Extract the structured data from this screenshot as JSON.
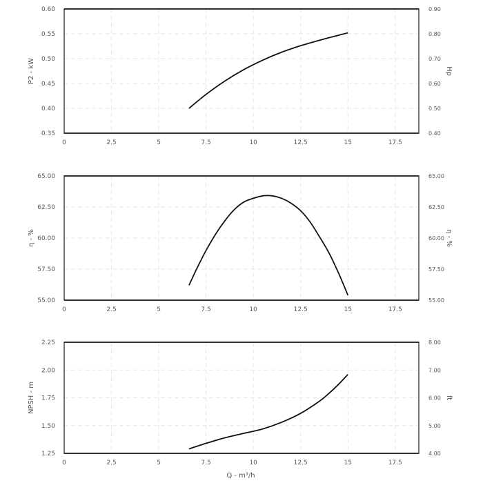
{
  "chart_data": [
    {
      "type": "line",
      "id": "power",
      "ylabel_left": "P2 - kW",
      "ylabel_right": "Hp",
      "xlim": [
        0,
        18.75
      ],
      "xticks": [
        0,
        2.5,
        5,
        7.5,
        10,
        12.5,
        15,
        17.5
      ],
      "xtick_labels": [
        "0",
        "2.5",
        "5",
        "7.5",
        "10",
        "12.5",
        "15",
        "17.5"
      ],
      "ylim": [
        0.35,
        0.6
      ],
      "yticks": [
        0.35,
        0.4,
        0.45,
        0.5,
        0.55,
        0.6
      ],
      "ytick_labels": [
        "0.35",
        "0.40",
        "0.45",
        "0.50",
        "0.55",
        "0.60"
      ],
      "right_tick_labels": [
        "0.40",
        "0.50",
        "0.60",
        "0.70",
        "0.80",
        "0.90"
      ],
      "grid": true,
      "series": [
        {
          "x": [
            6.6,
            7.5,
            8.5,
            9.5,
            10.5,
            11.5,
            12.5,
            13.5,
            14.5,
            15.0
          ],
          "y": [
            0.4,
            0.428,
            0.455,
            0.478,
            0.497,
            0.513,
            0.526,
            0.537,
            0.547,
            0.552
          ]
        }
      ]
    },
    {
      "type": "line",
      "id": "efficiency",
      "ylabel_left": "η - %",
      "ylabel_right": "η - %",
      "xlim": [
        0,
        18.75
      ],
      "xticks": [
        0,
        2.5,
        5,
        7.5,
        10,
        12.5,
        15,
        17.5
      ],
      "xtick_labels": [
        "0",
        "2.5",
        "5",
        "7.5",
        "10",
        "12.5",
        "15",
        "17.5"
      ],
      "ylim": [
        55.0,
        65.0
      ],
      "yticks": [
        55.0,
        57.5,
        60.0,
        62.5,
        65.0
      ],
      "ytick_labels": [
        "55.00",
        "57.50",
        "60.00",
        "62.50",
        "65.00"
      ],
      "right_tick_labels": [
        "55.00",
        "57.50",
        "60.00",
        "62.50",
        "65.00"
      ],
      "grid": true,
      "series": [
        {
          "x": [
            6.6,
            7.0,
            7.5,
            8.0,
            8.5,
            9.0,
            9.5,
            10.0,
            10.5,
            11.0,
            11.5,
            12.0,
            12.5,
            13.0,
            13.5,
            14.0,
            14.5,
            15.0
          ],
          "y": [
            56.2,
            57.5,
            59.0,
            60.3,
            61.4,
            62.3,
            62.9,
            63.2,
            63.4,
            63.4,
            63.2,
            62.8,
            62.2,
            61.3,
            60.1,
            58.8,
            57.2,
            55.4
          ]
        }
      ]
    },
    {
      "type": "line",
      "id": "npsh",
      "ylabel_left": "NPSH - m",
      "ylabel_right": "ft",
      "xlabel": "Q - m³/h",
      "xlim": [
        0,
        18.75
      ],
      "xticks": [
        0,
        2.5,
        5,
        7.5,
        10,
        12.5,
        15,
        17.5
      ],
      "xtick_labels": [
        "0",
        "2.5",
        "5",
        "7.5",
        "10",
        "12.5",
        "15",
        "17.5"
      ],
      "ylim": [
        1.25,
        2.25
      ],
      "yticks": [
        1.25,
        1.5,
        1.75,
        2.0,
        2.25
      ],
      "ytick_labels": [
        "1.25",
        "1.50",
        "1.75",
        "2.00",
        "2.25"
      ],
      "right_tick_labels": [
        "4.00",
        "5.00",
        "6.00",
        "7.00",
        "8.00"
      ],
      "grid": true,
      "series": [
        {
          "x": [
            6.6,
            7.5,
            8.5,
            9.5,
            10.5,
            11.5,
            12.5,
            13.5,
            14.0,
            14.5,
            15.0
          ],
          "y": [
            1.29,
            1.34,
            1.39,
            1.43,
            1.47,
            1.53,
            1.61,
            1.72,
            1.79,
            1.87,
            1.96
          ]
        }
      ]
    }
  ]
}
